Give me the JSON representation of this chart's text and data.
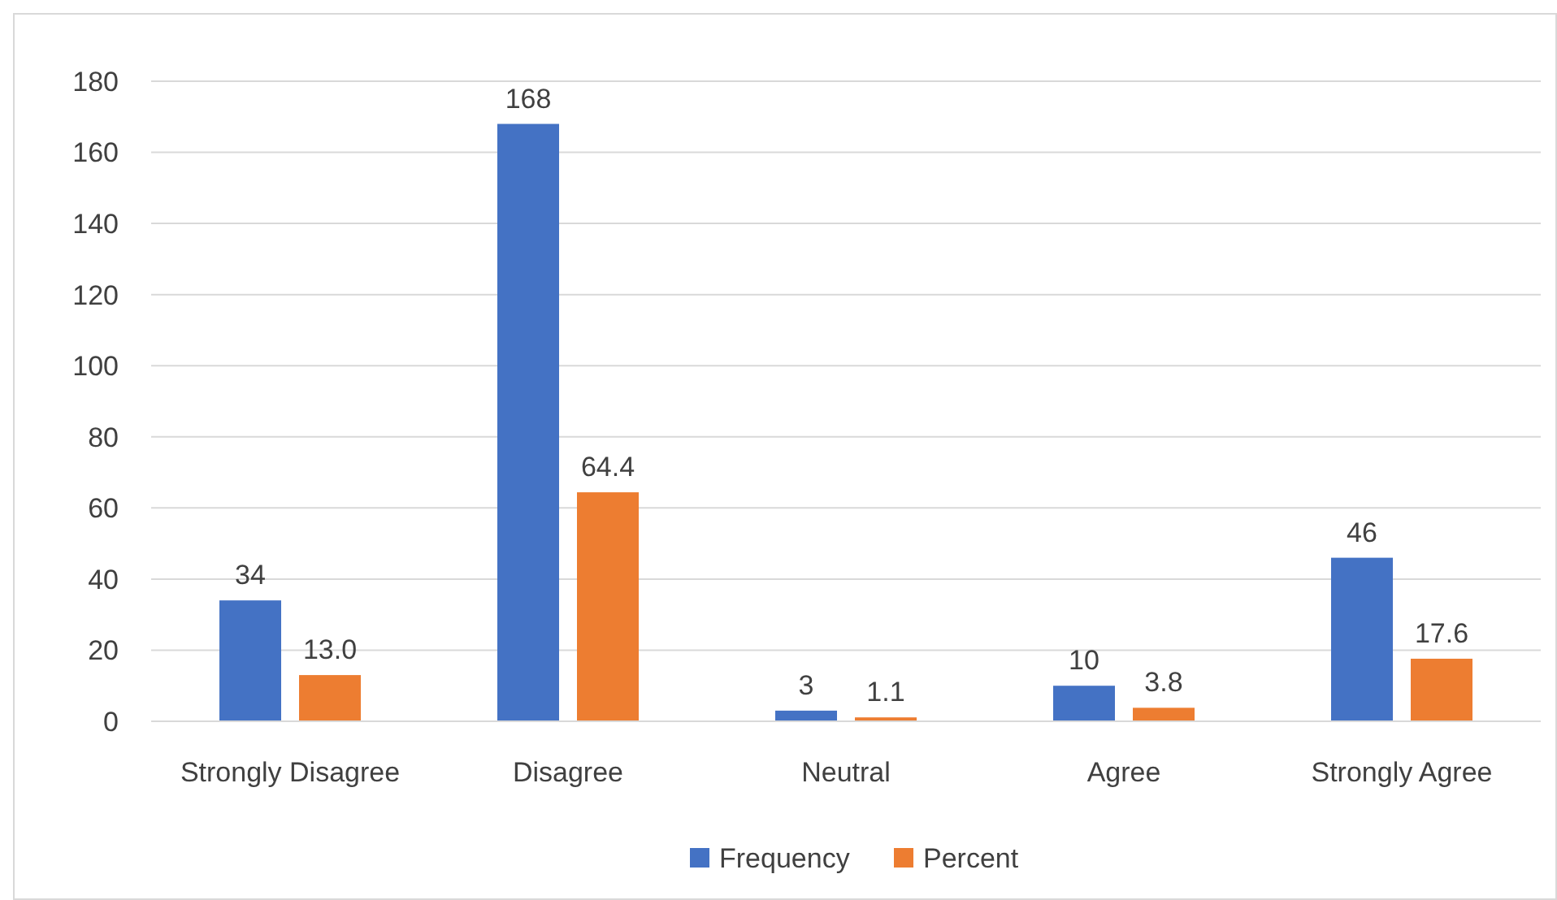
{
  "chart_data": {
    "type": "bar",
    "categories": [
      "Strongly Disagree",
      "Disagree",
      "Neutral",
      "Agree",
      "Strongly Agree"
    ],
    "series": [
      {
        "name": "Frequency",
        "color": "#4472c4",
        "values": [
          34,
          168,
          3,
          10,
          46
        ],
        "value_labels": [
          "34",
          "168",
          "3",
          "10",
          "46"
        ]
      },
      {
        "name": "Percent",
        "color": "#ed7d31",
        "values": [
          13.0,
          64.4,
          1.1,
          3.8,
          17.6
        ],
        "value_labels": [
          "13.0",
          "64.4",
          "1.1",
          "3.8",
          "17.6"
        ]
      }
    ],
    "ylim": [
      0,
      180
    ],
    "yticks": [
      0,
      20,
      40,
      60,
      80,
      100,
      120,
      140,
      160,
      180
    ],
    "grid": "y",
    "legend": "bottom"
  }
}
